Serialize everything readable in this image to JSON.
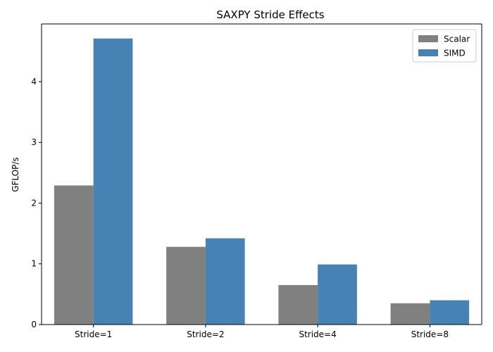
{
  "chart_data": {
    "type": "bar",
    "title": "SAXPY Stride Effects",
    "xlabel": "",
    "ylabel": "GFLOP/s",
    "categories": [
      "Stride=1",
      "Stride=2",
      "Stride=4",
      "Stride=8"
    ],
    "series": [
      {
        "name": "Scalar",
        "color": "#808080",
        "values": [
          2.29,
          1.28,
          0.65,
          0.35
        ]
      },
      {
        "name": "SIMD",
        "color": "#4682b4",
        "values": [
          4.71,
          1.42,
          0.99,
          0.4
        ]
      }
    ],
    "yticks": [
      0,
      1,
      2,
      3,
      4
    ],
    "ylim": [
      0,
      4.95
    ],
    "grid": false,
    "legend_position": "top-right"
  }
}
